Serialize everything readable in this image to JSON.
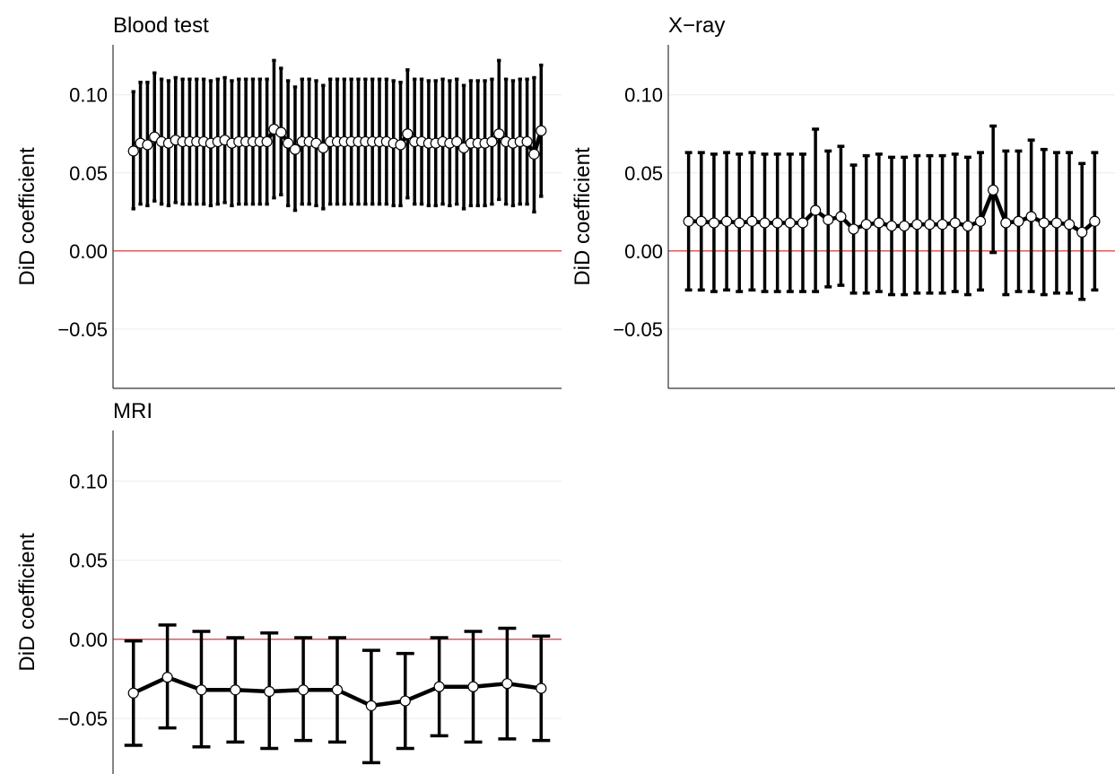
{
  "chart_data": [
    {
      "type": "line",
      "title": "Blood test",
      "ylabel": "DiD coefficient",
      "ylim": [
        -0.088,
        0.132
      ],
      "yticks": [
        {
          "value": -0.05,
          "label": "−0.05"
        },
        {
          "value": 0,
          "label": "0.00"
        },
        0.05,
        {
          "value": 0.1,
          "label": "0.10"
        }
      ],
      "grid": true,
      "reference_line": 0,
      "reference_color": "#d62728",
      "series": [
        {
          "color": "#000000",
          "values": [
            0.064,
            0.069,
            0.068,
            0.073,
            0.07,
            0.069,
            0.071,
            0.07,
            0.07,
            0.07,
            0.07,
            0.069,
            0.07,
            0.071,
            0.069,
            0.07,
            0.07,
            0.07,
            0.07,
            0.07,
            0.078,
            0.076,
            0.069,
            0.065,
            0.07,
            0.07,
            0.069,
            0.066,
            0.07,
            0.07,
            0.07,
            0.07,
            0.07,
            0.07,
            0.07,
            0.07,
            0.07,
            0.069,
            0.068,
            0.075,
            0.07,
            0.07,
            0.069,
            0.069,
            0.07,
            0.069,
            0.07,
            0.066,
            0.069,
            0.069,
            0.069,
            0.07,
            0.075,
            0.07,
            0.069,
            0.07,
            0.07,
            0.062,
            0.077
          ],
          "lower": [
            0.027,
            0.03,
            0.029,
            0.032,
            0.03,
            0.029,
            0.031,
            0.03,
            0.03,
            0.03,
            0.03,
            0.029,
            0.03,
            0.031,
            0.029,
            0.03,
            0.03,
            0.03,
            0.03,
            0.03,
            0.034,
            0.036,
            0.029,
            0.026,
            0.03,
            0.03,
            0.029,
            0.027,
            0.03,
            0.03,
            0.03,
            0.03,
            0.03,
            0.03,
            0.03,
            0.03,
            0.03,
            0.029,
            0.029,
            0.034,
            0.03,
            0.03,
            0.029,
            0.029,
            0.03,
            0.029,
            0.03,
            0.027,
            0.029,
            0.029,
            0.029,
            0.03,
            0.033,
            0.03,
            0.029,
            0.03,
            0.03,
            0.025,
            0.035
          ],
          "upper": [
            0.102,
            0.108,
            0.108,
            0.114,
            0.11,
            0.109,
            0.111,
            0.11,
            0.11,
            0.11,
            0.11,
            0.109,
            0.11,
            0.111,
            0.109,
            0.11,
            0.11,
            0.11,
            0.11,
            0.11,
            0.122,
            0.117,
            0.109,
            0.105,
            0.11,
            0.11,
            0.109,
            0.106,
            0.11,
            0.11,
            0.11,
            0.11,
            0.11,
            0.11,
            0.11,
            0.11,
            0.11,
            0.109,
            0.108,
            0.116,
            0.11,
            0.11,
            0.109,
            0.109,
            0.11,
            0.109,
            0.11,
            0.106,
            0.109,
            0.109,
            0.109,
            0.11,
            0.122,
            0.11,
            0.109,
            0.11,
            0.11,
            0.111,
            0.119
          ]
        }
      ]
    },
    {
      "type": "line",
      "title": "X−ray",
      "ylabel": "DiD coefficient",
      "ylim": [
        -0.088,
        0.132
      ],
      "yticks": [
        {
          "value": -0.05,
          "label": "−0.05"
        },
        {
          "value": 0,
          "label": "0.00"
        },
        0.05,
        {
          "value": 0.1,
          "label": "0.10"
        }
      ],
      "grid": true,
      "reference_line": 0,
      "reference_color": "#d62728",
      "series": [
        {
          "color": "#000000",
          "values": [
            0.019,
            0.019,
            0.018,
            0.019,
            0.018,
            0.019,
            0.018,
            0.018,
            0.018,
            0.018,
            0.026,
            0.02,
            0.022,
            0.014,
            0.017,
            0.018,
            0.016,
            0.016,
            0.017,
            0.017,
            0.017,
            0.018,
            0.016,
            0.019,
            0.039,
            0.018,
            0.019,
            0.022,
            0.018,
            0.018,
            0.017,
            0.012,
            0.019
          ],
          "lower": [
            -0.025,
            -0.025,
            -0.026,
            -0.025,
            -0.026,
            -0.025,
            -0.026,
            -0.026,
            -0.026,
            -0.026,
            -0.026,
            -0.023,
            -0.022,
            -0.027,
            -0.027,
            -0.026,
            -0.028,
            -0.028,
            -0.027,
            -0.027,
            -0.027,
            -0.026,
            -0.028,
            -0.025,
            -0.001,
            -0.028,
            -0.026,
            -0.026,
            -0.028,
            -0.027,
            -0.027,
            -0.031,
            -0.025
          ],
          "upper": [
            0.063,
            0.063,
            0.062,
            0.063,
            0.062,
            0.063,
            0.062,
            0.062,
            0.062,
            0.062,
            0.078,
            0.064,
            0.067,
            0.055,
            0.061,
            0.062,
            0.06,
            0.06,
            0.061,
            0.061,
            0.061,
            0.062,
            0.06,
            0.063,
            0.08,
            0.064,
            0.064,
            0.071,
            0.065,
            0.063,
            0.063,
            0.056,
            0.063
          ]
        }
      ]
    },
    {
      "type": "line",
      "title": "MRI",
      "ylabel": "DiD coefficient",
      "ylim": [
        -0.088,
        0.132
      ],
      "yticks": [
        {
          "value": -0.05,
          "label": "−0.05"
        },
        {
          "value": 0,
          "label": "0.00"
        },
        0.05,
        {
          "value": 0.1,
          "label": "0.10"
        }
      ],
      "grid": true,
      "reference_line": 0,
      "reference_color": "#d62728",
      "series": [
        {
          "color": "#000000",
          "values": [
            -0.034,
            -0.024,
            -0.032,
            -0.032,
            -0.033,
            -0.032,
            -0.032,
            -0.042,
            -0.039,
            -0.03,
            -0.03,
            -0.028,
            -0.031
          ],
          "lower": [
            -0.067,
            -0.056,
            -0.068,
            -0.065,
            -0.069,
            -0.064,
            -0.065,
            -0.078,
            -0.069,
            -0.061,
            -0.065,
            -0.063,
            -0.064
          ],
          "upper": [
            -0.001,
            0.009,
            0.005,
            0.001,
            0.004,
            0.001,
            0.001,
            -0.007,
            -0.009,
            0.001,
            0.005,
            0.007,
            0.002
          ]
        }
      ]
    }
  ]
}
